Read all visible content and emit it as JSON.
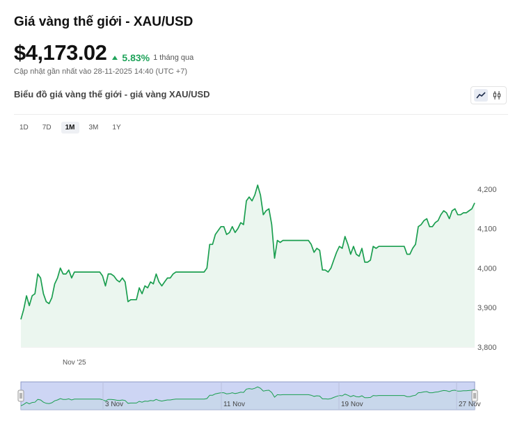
{
  "header": {
    "title": "Giá vàng thế giới - XAU/USD",
    "price": "$4,173.02",
    "change": "5.83%",
    "period": "1 tháng qua",
    "updated": "Cập nhật gần nhất vào 28-11-2025 14:40 (UTC +7)",
    "subtitle": "Biểu đồ giá vàng thế giới - giá vàng XAU/USD"
  },
  "toggle": {
    "line_icon": "line-chart-icon",
    "candle_icon": "candlestick-icon"
  },
  "ranges": [
    "1D",
    "7D",
    "1M",
    "3M",
    "1Y"
  ],
  "active_range": "1M",
  "colors": {
    "line": "#1a9e4f",
    "fill": "#ebf6ef",
    "up": "#1fa35a",
    "navigator": "#cdd5f4"
  },
  "chart_data": {
    "type": "area",
    "series": [
      {
        "values": [
          3870,
          3895,
          3930,
          3905,
          3930,
          3935,
          3985,
          3975,
          3935,
          3915,
          3910,
          3925,
          3960,
          3975,
          4000,
          3985,
          3985,
          3995,
          3975,
          3990,
          3990,
          3990,
          3990,
          3990,
          3990,
          3990,
          3990,
          3990,
          3990,
          3980,
          3955,
          3985,
          3985,
          3980,
          3970,
          3965,
          3975,
          3965,
          3915,
          3920,
          3920,
          3920,
          3950,
          3935,
          3955,
          3950,
          3965,
          3960,
          3985,
          3965,
          3955,
          3965,
          3975,
          3975,
          3985,
          3990,
          3990,
          3990,
          3990,
          3990,
          3990,
          3990,
          3990,
          3990,
          3990,
          3990,
          4000,
          4060,
          4060,
          4085,
          4095,
          4105,
          4105,
          4085,
          4090,
          4105,
          4090,
          4100,
          4115,
          4110,
          4170,
          4180,
          4170,
          4185,
          4210,
          4185,
          4135,
          4145,
          4150,
          4110,
          4025,
          4070,
          4065,
          4070,
          4070,
          4070,
          4070,
          4070,
          4070,
          4070,
          4070,
          4070,
          4070,
          4060,
          4040,
          4050,
          4045,
          3995,
          3995,
          3990,
          4000,
          4020,
          4040,
          4055,
          4050,
          4080,
          4060,
          4035,
          4055,
          4035,
          4030,
          4050,
          4015,
          4015,
          4020,
          4055,
          4050,
          4055,
          4055,
          4055,
          4055,
          4055,
          4055,
          4055,
          4055,
          4055,
          4055,
          4035,
          4035,
          4050,
          4060,
          4105,
          4110,
          4120,
          4125,
          4105,
          4105,
          4115,
          4120,
          4135,
          4145,
          4140,
          4125,
          4145,
          4150,
          4135,
          4135,
          4140,
          4140,
          4145,
          4150,
          4165
        ]
      }
    ],
    "ylim": [
      3800,
      4230
    ],
    "yticks": [
      3800,
      3900,
      4000,
      4100,
      4200
    ],
    "ytick_labels": [
      "3,800",
      "3,900",
      "4,000",
      "4,100",
      "4,200"
    ],
    "xtick_label": "Nov '25",
    "navigator_labels": [
      "3 Nov",
      "11 Nov",
      "19 Nov",
      "27 Nov"
    ]
  }
}
